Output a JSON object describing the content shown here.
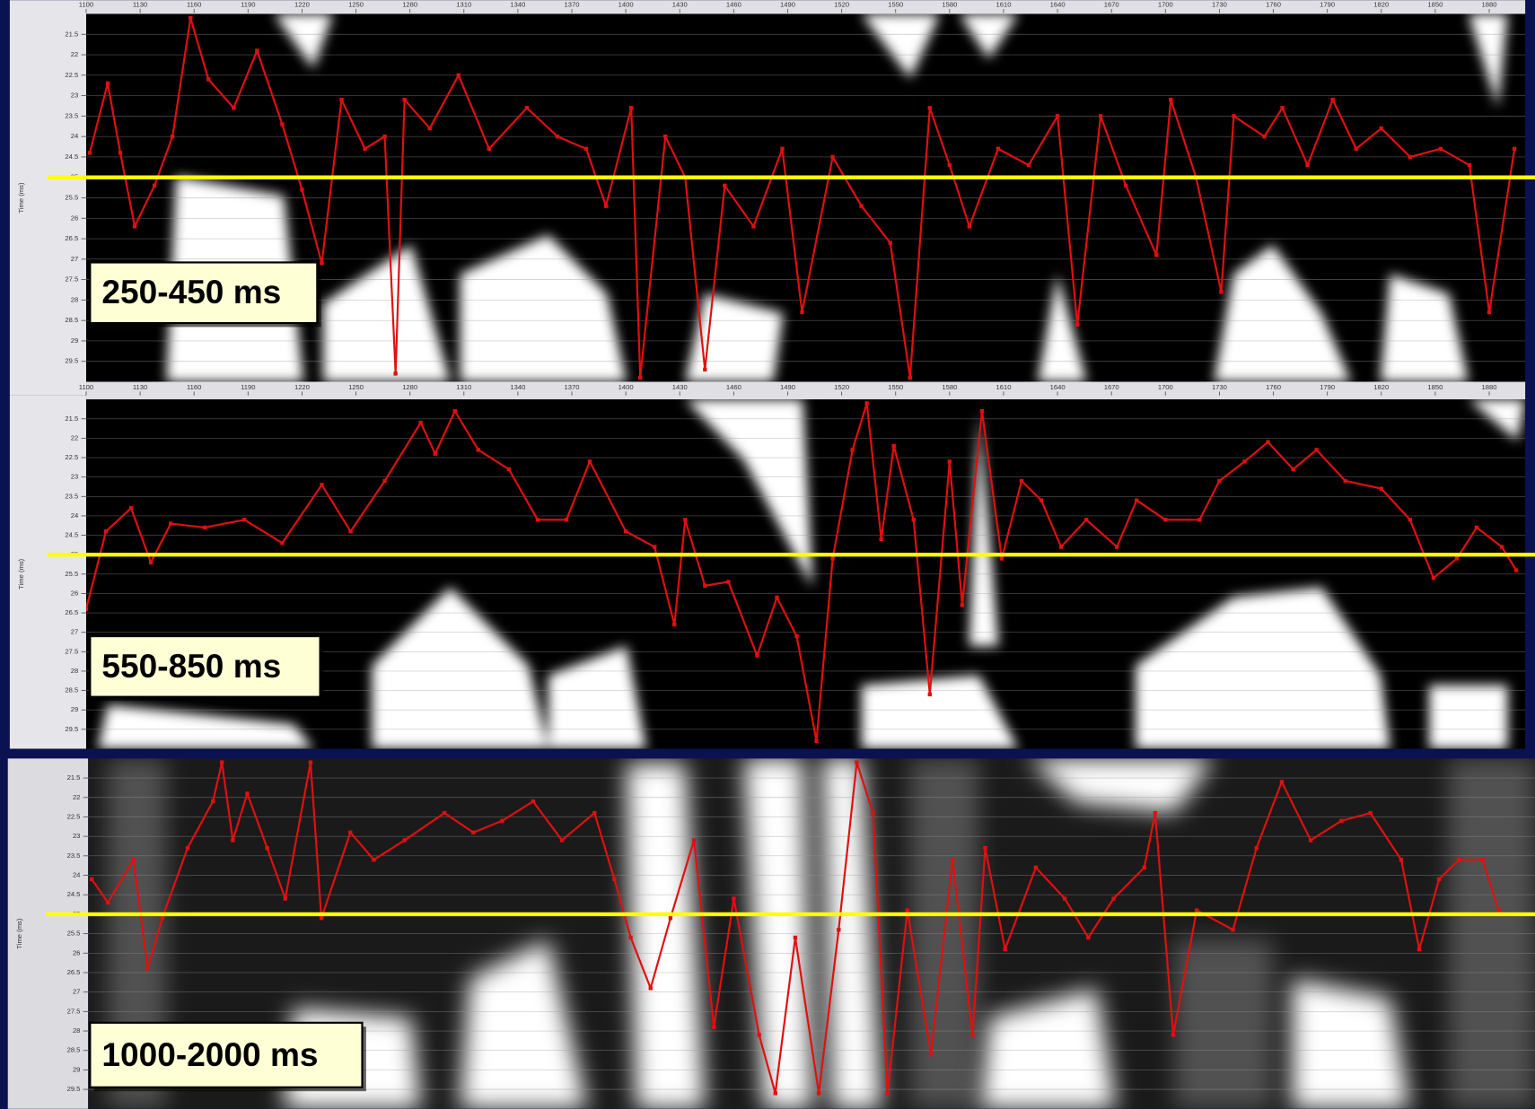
{
  "chart_data": [
    {
      "type": "line",
      "annotation": "250-450 ms",
      "y_label": "Time (ms)",
      "x": [
        1102,
        1112,
        1119,
        1127,
        1138,
        1148,
        1158,
        1168,
        1182,
        1195,
        1209,
        1220,
        1231,
        1242,
        1255,
        1266,
        1272,
        1277,
        1291,
        1307,
        1324,
        1345,
        1362,
        1378,
        1389,
        1403,
        1408,
        1422,
        1433,
        1444,
        1455,
        1471,
        1487,
        1498,
        1515,
        1531,
        1547,
        1558,
        1569,
        1580,
        1591,
        1607,
        1624,
        1640,
        1651,
        1664,
        1678,
        1695,
        1703,
        1717,
        1731,
        1738,
        1755,
        1765,
        1779,
        1793,
        1806,
        1820,
        1836,
        1853,
        1869,
        1880,
        1894
      ],
      "series": [
        {
          "color": "#e01010",
          "values": [
            24.4,
            22.7,
            24.4,
            26.2,
            25.2,
            24.0,
            21.1,
            22.6,
            23.3,
            21.9,
            23.7,
            25.3,
            27.1,
            23.1,
            24.3,
            24.0,
            29.8,
            23.1,
            23.8,
            22.5,
            24.3,
            23.3,
            24.0,
            24.3,
            25.7,
            23.3,
            29.9,
            24.0,
            25.0,
            29.7,
            25.2,
            26.2,
            24.3,
            28.3,
            24.5,
            25.7,
            26.6,
            29.9,
            23.3,
            24.7,
            26.2,
            24.3,
            24.7,
            23.5,
            28.6,
            23.5,
            25.2,
            26.9,
            23.1,
            25.0,
            27.8,
            23.5,
            24.0,
            23.3,
            24.7,
            23.1,
            24.3,
            23.8,
            24.5,
            24.3,
            24.7,
            28.3,
            24.3
          ]
        }
      ],
      "xlim": [
        1100,
        1900
      ],
      "xticks": [
        1100,
        1130,
        1160,
        1190,
        1220,
        1250,
        1280,
        1310,
        1340,
        1370,
        1400,
        1430,
        1460,
        1490,
        1520,
        1550,
        1580,
        1610,
        1640,
        1670,
        1700,
        1730,
        1760,
        1790,
        1820,
        1850,
        1880
      ],
      "ylim": [
        21,
        30
      ],
      "yticks": [
        21.5,
        22,
        22.5,
        23,
        23.5,
        24,
        24.5,
        25,
        25.5,
        26,
        26.5,
        27,
        27.5,
        28,
        28.5,
        29,
        29.5
      ],
      "invert_y": true,
      "grid": true,
      "hline": 25,
      "hline_color": "#ffff00"
    },
    {
      "type": "line",
      "annotation": "550-850 ms",
      "y_label": "Time (ms)",
      "x": [
        1100,
        1111,
        1125,
        1136,
        1147,
        1166,
        1188,
        1209,
        1231,
        1247,
        1266,
        1286,
        1294,
        1305,
        1318,
        1335,
        1351,
        1367,
        1380,
        1400,
        1416,
        1427,
        1433,
        1444,
        1457,
        1473,
        1484,
        1495,
        1506,
        1515,
        1526,
        1534,
        1542,
        1549,
        1560,
        1569,
        1580,
        1587,
        1598,
        1609,
        1620,
        1631,
        1642,
        1656,
        1673,
        1684,
        1700,
        1719,
        1730,
        1744,
        1757,
        1771,
        1784,
        1800,
        1820,
        1836,
        1849,
        1862,
        1873,
        1887,
        1895
      ],
      "series": [
        {
          "color": "#e01010",
          "values": [
            26.4,
            24.4,
            23.8,
            25.2,
            24.2,
            24.3,
            24.1,
            24.7,
            23.2,
            24.4,
            23.1,
            21.6,
            22.4,
            21.3,
            22.3,
            22.8,
            24.1,
            24.1,
            22.6,
            24.4,
            24.8,
            26.8,
            24.1,
            25.8,
            25.7,
            27.6,
            26.1,
            27.1,
            29.8,
            25.1,
            22.3,
            21.1,
            24.6,
            22.2,
            24.1,
            28.6,
            22.6,
            26.3,
            21.3,
            25.1,
            23.1,
            23.6,
            24.8,
            24.1,
            24.8,
            23.6,
            24.1,
            24.1,
            23.1,
            22.6,
            22.1,
            22.8,
            22.3,
            23.1,
            23.3,
            24.1,
            25.6,
            25.1,
            24.3,
            24.8,
            25.4
          ]
        }
      ],
      "xlim": [
        1100,
        1900
      ],
      "xticks": [
        1100,
        1130,
        1160,
        1190,
        1220,
        1250,
        1280,
        1310,
        1340,
        1370,
        1400,
        1430,
        1460,
        1490,
        1520,
        1550,
        1580,
        1610,
        1640,
        1670,
        1700,
        1730,
        1760,
        1790,
        1820,
        1850,
        1880
      ],
      "ylim": [
        21,
        30
      ],
      "yticks": [
        21.5,
        22,
        22.5,
        23,
        23.5,
        24,
        24.5,
        25,
        25.5,
        26,
        26.5,
        27,
        27.5,
        28,
        28.5,
        29,
        29.5
      ],
      "invert_y": true,
      "grid": true,
      "hline": 25,
      "hline_color": "#ffff00"
    },
    {
      "type": "line",
      "annotation": "1000-2000 ms",
      "y_label": "Time (ms)",
      "x": [
        1102,
        1111,
        1125,
        1133,
        1141,
        1155,
        1169,
        1174,
        1180,
        1188,
        1199,
        1209,
        1223,
        1229,
        1245,
        1258,
        1275,
        1297,
        1313,
        1329,
        1346,
        1362,
        1380,
        1391,
        1400,
        1411,
        1422,
        1435,
        1446,
        1457,
        1471,
        1480,
        1491,
        1504,
        1515,
        1525,
        1534,
        1542,
        1553,
        1566,
        1578,
        1589,
        1596,
        1607,
        1624,
        1640,
        1653,
        1667,
        1684,
        1690,
        1700,
        1713,
        1733,
        1746,
        1760,
        1776,
        1793,
        1809,
        1826,
        1836,
        1847,
        1858,
        1871,
        1880
      ],
      "series": [
        {
          "color": "#e01010",
          "values": [
            24.1,
            24.7,
            23.6,
            26.4,
            25.1,
            23.3,
            22.1,
            21.1,
            23.1,
            21.9,
            23.3,
            24.6,
            21.1,
            25.1,
            22.9,
            23.6,
            23.1,
            22.4,
            22.9,
            22.6,
            22.1,
            23.1,
            22.4,
            24.1,
            25.6,
            26.9,
            25.1,
            23.1,
            27.9,
            24.6,
            28.1,
            29.6,
            25.6,
            29.6,
            25.4,
            21.1,
            22.4,
            29.6,
            24.9,
            28.6,
            23.6,
            28.1,
            23.3,
            25.9,
            23.8,
            24.6,
            25.6,
            24.6,
            23.8,
            22.4,
            28.1,
            24.9,
            25.4,
            23.3,
            21.6,
            23.1,
            22.6,
            22.4,
            23.6,
            25.9,
            24.1,
            23.6,
            23.6,
            24.9
          ]
        }
      ],
      "xlim": [
        1100,
        1900
      ],
      "ylim": [
        21,
        30
      ],
      "yticks": [
        21.5,
        22,
        22.5,
        23,
        23.5,
        24,
        24.5,
        25,
        25.5,
        26,
        26.5,
        27,
        27.5,
        28,
        28.5,
        29,
        29.5
      ],
      "invert_y": true,
      "grid": true,
      "hline": 25,
      "hline_color": "#ffff00"
    }
  ]
}
